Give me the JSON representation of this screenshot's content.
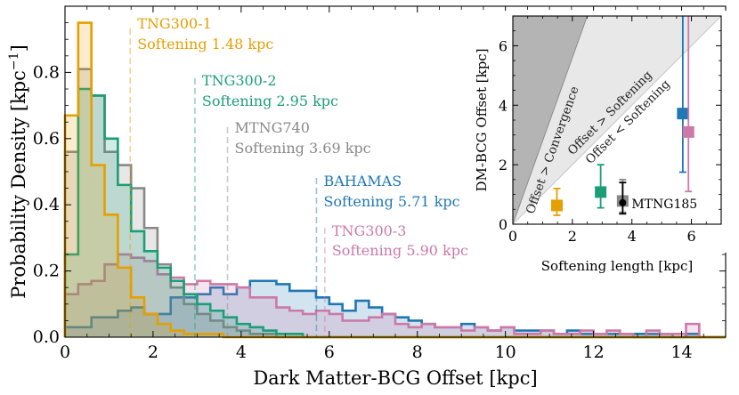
{
  "chart_data": [
    {
      "type": "histogram",
      "xlabel": "Dark Matter-BCG Offset [kpc]",
      "ylabel": "Probability Density [kpc",
      "ylabel_exponent": "−1",
      "ylabel_close": "]",
      "xlim": [
        0,
        15
      ],
      "ylim": [
        0,
        1.0
      ],
      "bin_width": 0.3,
      "xticks": [
        0,
        2,
        4,
        6,
        8,
        10,
        12,
        14
      ],
      "xtick_labels": [
        "0",
        "2",
        "4",
        "6",
        "8",
        "10",
        "12",
        "14"
      ],
      "yticks": [
        0.0,
        0.2,
        0.4,
        0.6,
        0.8
      ],
      "ytick_labels": [
        "0.0",
        "0.2",
        "0.4",
        "0.6",
        "0.8"
      ],
      "series": [
        {
          "name": "TNG300-1",
          "softening_label": "Softening 1.48 kpc",
          "softening": 1.48,
          "color": "#e69f00",
          "values": [
            0.67,
            0.95,
            0.52,
            0.37,
            0.21,
            0.12,
            0.07,
            0.04,
            0.02,
            0.01,
            0.01,
            0.01,
            0.0,
            0.0,
            0.0,
            0.0,
            0.0,
            0.0,
            0.0,
            0.0,
            0.0,
            0.0,
            0.0,
            0.0,
            0.0,
            0.0,
            0.0,
            0.0,
            0.0,
            0.0,
            0.0,
            0.0,
            0.0,
            0.0,
            0.0,
            0.0,
            0.0,
            0.0,
            0.0,
            0.0,
            0.0,
            0.0,
            0.0,
            0.0,
            0.0,
            0.0,
            0.0,
            0.0,
            0.0,
            0.0
          ]
        },
        {
          "name": "TNG300-2",
          "softening_label": "Softening 2.95 kpc",
          "softening": 2.95,
          "color": "#1b9e77",
          "values": [
            0.25,
            0.75,
            0.73,
            0.6,
            0.46,
            0.32,
            0.26,
            0.21,
            0.17,
            0.13,
            0.1,
            0.08,
            0.06,
            0.04,
            0.03,
            0.02,
            0.01,
            0.01,
            0.0,
            0.0,
            0.0,
            0.0,
            0.0,
            0.0,
            0.0,
            0.0,
            0.0,
            0.0,
            0.0,
            0.0,
            0.0,
            0.0,
            0.0,
            0.0,
            0.0,
            0.0,
            0.0,
            0.0,
            0.0,
            0.0,
            0.0,
            0.0,
            0.0,
            0.0,
            0.0,
            0.0,
            0.0,
            0.0,
            0.0,
            0.0
          ]
        },
        {
          "name": "MTNG740",
          "softening_label": "Softening 3.69 kpc",
          "softening": 3.69,
          "color": "#888888",
          "values": [
            0.56,
            0.81,
            0.73,
            0.56,
            0.52,
            0.45,
            0.33,
            0.22,
            0.15,
            0.1,
            0.07,
            0.05,
            0.03,
            0.02,
            0.01,
            0.01,
            0.0,
            0.0,
            0.0,
            0.0,
            0.0,
            0.0,
            0.0,
            0.0,
            0.0,
            0.0,
            0.0,
            0.0,
            0.0,
            0.0,
            0.0,
            0.0,
            0.0,
            0.0,
            0.0,
            0.0,
            0.0,
            0.0,
            0.0,
            0.0,
            0.0,
            0.0,
            0.0,
            0.0,
            0.0,
            0.0,
            0.0,
            0.0,
            0.0,
            0.0
          ]
        },
        {
          "name": "BAHAMAS",
          "softening_label": "Softening 5.71 kpc",
          "softening": 5.71,
          "color": "#1f77b4",
          "values": [
            0.03,
            0.03,
            0.06,
            0.06,
            0.08,
            0.09,
            0.07,
            0.07,
            0.12,
            0.12,
            0.13,
            0.15,
            0.13,
            0.15,
            0.17,
            0.17,
            0.16,
            0.14,
            0.14,
            0.12,
            0.1,
            0.08,
            0.11,
            0.09,
            0.07,
            0.06,
            0.05,
            0.04,
            0.03,
            0.03,
            0.04,
            0.03,
            0.02,
            0.03,
            0.02,
            0.02,
            0.02,
            0.01,
            0.02,
            0.01,
            0.01,
            0.01,
            0.01,
            0.01,
            0.01,
            0.01,
            0.0,
            0.01,
            0.0,
            0.0
          ]
        },
        {
          "name": "TNG300-3",
          "softening_label": "Softening 5.90 kpc",
          "softening": 5.9,
          "color": "#cc79a7",
          "values": [
            0.13,
            0.16,
            0.17,
            0.22,
            0.25,
            0.24,
            0.23,
            0.19,
            0.18,
            0.16,
            0.17,
            0.16,
            0.16,
            0.15,
            0.12,
            0.12,
            0.09,
            0.08,
            0.07,
            0.08,
            0.07,
            0.05,
            0.05,
            0.06,
            0.07,
            0.04,
            0.03,
            0.04,
            0.03,
            0.03,
            0.02,
            0.03,
            0.02,
            0.03,
            0.01,
            0.01,
            0.02,
            0.01,
            0.01,
            0.02,
            0.01,
            0.02,
            0.01,
            0.0,
            0.02,
            0.01,
            0.01,
            0.04,
            0.0,
            0.0
          ]
        }
      ]
    },
    {
      "type": "scatter_with_errorbars",
      "xlabel": "Softening length [kpc]",
      "ylabel": "DM-BCG Offset [kpc]",
      "xlim": [
        0,
        7
      ],
      "ylim": [
        0,
        7
      ],
      "xticks": [
        0,
        2,
        4,
        6
      ],
      "xtick_labels": [
        "0",
        "2",
        "4",
        "6"
      ],
      "yticks": [
        0,
        2,
        4,
        6
      ],
      "ytick_labels": [
        "0",
        "2",
        "4",
        "6"
      ],
      "regions": [
        {
          "name": "Offset > Convergence",
          "shade": "#b4b4b4"
        },
        {
          "name": "Offset > Softening",
          "shade": "#e8e8e8"
        },
        {
          "name": "Offset < Softening",
          "shade": "#ffffff"
        }
      ],
      "points": [
        {
          "name": "TNG300-1",
          "x": 1.48,
          "y": 0.63,
          "lo": 0.3,
          "hi": 1.2,
          "color": "#e69f00",
          "marker": "square"
        },
        {
          "name": "TNG300-2",
          "x": 2.95,
          "y": 1.08,
          "lo": 0.55,
          "hi": 2.0,
          "color": "#1b9e77",
          "marker": "square"
        },
        {
          "name": "MTNG740",
          "x": 3.69,
          "y": 0.78,
          "lo": 0.4,
          "hi": 1.5,
          "color": "#888888",
          "marker": "square"
        },
        {
          "name": "MTNG185",
          "x": 3.69,
          "y": 0.72,
          "lo": 0.35,
          "hi": 1.4,
          "color": "#000000",
          "marker": "circle",
          "label": "MTNG185"
        },
        {
          "name": "BAHAMAS",
          "x": 5.71,
          "y": 3.72,
          "lo": 1.75,
          "hi": 7.0,
          "color": "#1f77b4",
          "marker": "square"
        },
        {
          "name": "TNG300-3",
          "x": 5.9,
          "y": 3.1,
          "lo": 1.1,
          "hi": 7.0,
          "color": "#cc79a7",
          "marker": "square"
        }
      ]
    }
  ]
}
